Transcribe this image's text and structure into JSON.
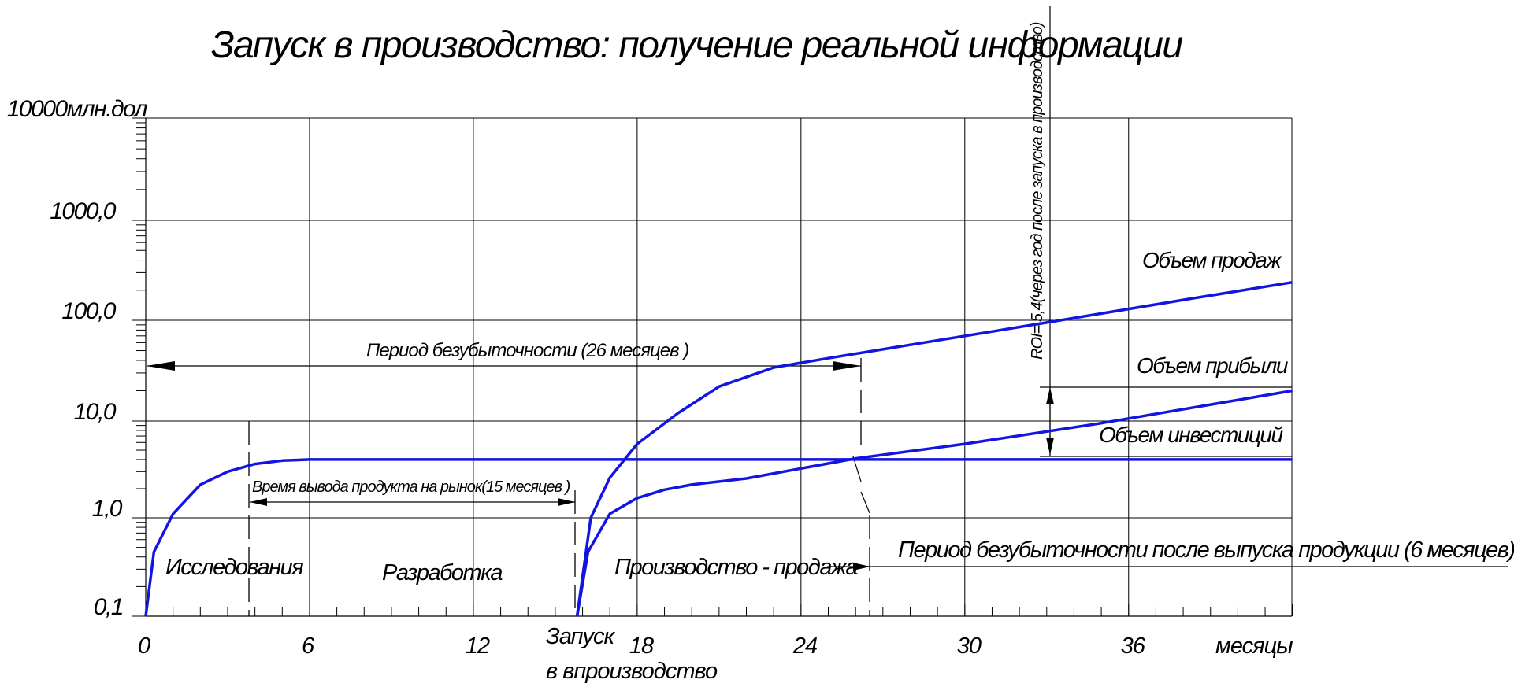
{
  "chart_data": {
    "type": "line",
    "title": "Запуск в производство: получение реальной информации",
    "xlabel": "месяцы",
    "ylabel": "10000млн.дол",
    "yscale": "log",
    "xlim": [
      0,
      42
    ],
    "ylim": [
      0.1,
      10000
    ],
    "grid": true,
    "x_ticks": [
      0,
      6,
      12,
      18,
      24,
      30,
      36
    ],
    "x_tick_labels": [
      "0",
      "6",
      "12",
      "18",
      "24",
      "30",
      "36"
    ],
    "y_tick_labels": [
      "0,1",
      "1,0",
      "10,0",
      "100,0",
      "1000,0",
      "10000млн.дол"
    ],
    "series": [
      {
        "name": "Объем продаж",
        "color": "#1414e0",
        "x": [
          15.8,
          16.3,
          17.0,
          18.0,
          19.5,
          21.0,
          23.0,
          25.0,
          28.0,
          33.0,
          38.0,
          42.0
        ],
        "y": [
          0.1,
          1.0,
          2.6,
          5.8,
          12.0,
          22.0,
          34.0,
          42.0,
          57.0,
          95.0,
          160.0,
          240.0
        ]
      },
      {
        "name": "Объем прибыли",
        "color": "#1414e0",
        "x": [
          15.8,
          16.2,
          17.0,
          18.0,
          19.0,
          20.0,
          22.0,
          26.0,
          30.0,
          35.0,
          42.0
        ],
        "y": [
          0.1,
          0.45,
          1.1,
          1.6,
          1.95,
          2.2,
          2.55,
          4.1,
          5.8,
          9.5,
          20.0
        ]
      },
      {
        "name": "Объем инвестиций",
        "color": "#1414e0",
        "x": [
          0,
          0.3,
          1.0,
          2.0,
          3.0,
          4.0,
          5.0,
          6.0,
          42.0
        ],
        "y": [
          0.1,
          0.45,
          1.1,
          2.2,
          3.0,
          3.6,
          3.9,
          4.0,
          4.0
        ]
      }
    ],
    "annotations": [
      "Период безубыточности (26 месяцев )",
      "Время вывода продукта на рынок(15 месяцев )",
      "Период безубыточности после выпуска продукции (6 месяцев)",
      "ROI= 5,4(через год после запуска в производство)",
      "Исследования",
      "Разработка",
      "Производство - продажа",
      "Запуск",
      "в впроизводство"
    ]
  }
}
